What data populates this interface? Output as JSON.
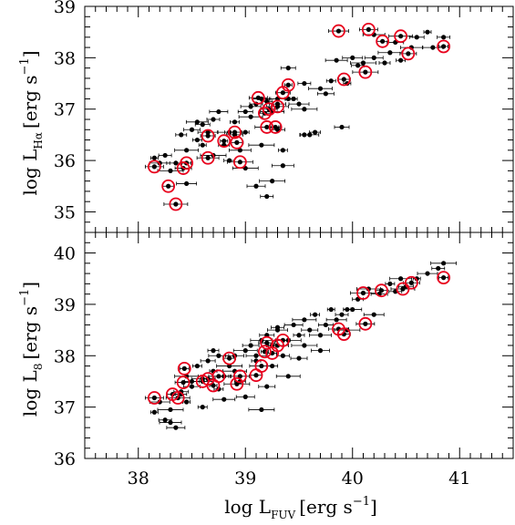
{
  "chart_data": [
    {
      "type": "scatter",
      "panel": "top",
      "ylabel": "log L",
      "ylabel_sub": "Hα",
      "ylabel_unit": "[erg s",
      "ylabel_exp": "−1",
      "ylabel_close": "]",
      "xlim": [
        37.5,
        41.5
      ],
      "ylim": [
        34.6,
        39.0
      ],
      "xticks": [
        38,
        39,
        40,
        41
      ],
      "yticks": [
        35,
        36,
        37,
        38,
        39
      ],
      "ytick_labels": [
        "35",
        "36",
        "37",
        "38",
        "39"
      ],
      "series": [
        {
          "points": [
            [
              38.15,
              36.05
            ],
            [
              38.2,
              35.95
            ],
            [
              38.25,
              36.1
            ],
            [
              38.3,
              35.8
            ],
            [
              38.35,
              35.95
            ],
            [
              38.4,
              36.5
            ],
            [
              38.45,
              36.2
            ],
            [
              38.5,
              36.6
            ],
            [
              38.55,
              36.4
            ],
            [
              38.55,
              36.75
            ],
            [
              38.6,
              36.7
            ],
            [
              38.6,
              36.3
            ],
            [
              38.65,
              36.55
            ],
            [
              38.7,
              36.8
            ],
            [
              38.7,
              36.1
            ],
            [
              38.75,
              36.95
            ],
            [
              38.8,
              36.3
            ],
            [
              38.85,
              36.55
            ],
            [
              38.9,
              36.5
            ],
            [
              38.9,
              36.75
            ],
            [
              38.95,
              36.2
            ],
            [
              39.0,
              36.95
            ],
            [
              39.0,
              36.55
            ],
            [
              39.05,
              37.05
            ],
            [
              39.1,
              37.1
            ],
            [
              39.15,
              36.3
            ],
            [
              39.15,
              37.2
            ],
            [
              39.2,
              37.15
            ],
            [
              39.25,
              36.95
            ],
            [
              39.3,
              37.2
            ],
            [
              39.35,
              36.2
            ],
            [
              39.35,
              35.9
            ],
            [
              39.4,
              37.8
            ],
            [
              39.45,
              37.2
            ],
            [
              39.5,
              37.1
            ],
            [
              39.55,
              37.5
            ],
            [
              39.55,
              37.0
            ],
            [
              39.6,
              36.5
            ],
            [
              39.65,
              36.55
            ],
            [
              39.7,
              37.4
            ],
            [
              39.75,
              37.3
            ],
            [
              39.8,
              37.55
            ],
            [
              39.85,
              37.95
            ],
            [
              39.9,
              36.65
            ],
            [
              39.95,
              37.5
            ],
            [
              40.0,
              38.0
            ],
            [
              40.05,
              37.85
            ],
            [
              40.1,
              37.9
            ],
            [
              40.2,
              38.0
            ],
            [
              40.3,
              37.9
            ],
            [
              40.35,
              38.1
            ],
            [
              40.4,
              38.3
            ],
            [
              40.45,
              37.95
            ],
            [
              40.55,
              38.2
            ],
            [
              40.6,
              38.4
            ],
            [
              40.7,
              38.5
            ],
            [
              40.75,
              38.2
            ],
            [
              40.85,
              38.4
            ],
            [
              39.25,
              35.6
            ],
            [
              39.1,
              35.5
            ],
            [
              38.85,
              36.0
            ],
            [
              39.05,
              36.85
            ],
            [
              39.3,
              37.1
            ],
            [
              39.55,
              36.5
            ],
            [
              40.2,
              38.45
            ],
            [
              39.3,
              36.6
            ],
            [
              39.4,
              37.2
            ],
            [
              38.45,
              35.55
            ],
            [
              39.2,
              35.3
            ],
            [
              39.0,
              35.85
            ]
          ]
        },
        {
          "name": "circled",
          "points": [
            [
              38.15,
              35.88
            ],
            [
              38.28,
              35.5
            ],
            [
              38.35,
              35.15
            ],
            [
              38.42,
              35.85
            ],
            [
              38.45,
              35.95
            ],
            [
              38.65,
              36.05
            ],
            [
              38.65,
              36.48
            ],
            [
              38.8,
              36.38
            ],
            [
              38.9,
              36.55
            ],
            [
              38.92,
              36.35
            ],
            [
              38.95,
              35.97
            ],
            [
              39.12,
              37.22
            ],
            [
              39.18,
              36.92
            ],
            [
              39.2,
              36.65
            ],
            [
              39.22,
              37.0
            ],
            [
              39.28,
              36.65
            ],
            [
              39.3,
              37.05
            ],
            [
              39.35,
              37.32
            ],
            [
              39.4,
              37.47
            ],
            [
              39.87,
              38.52
            ],
            [
              39.92,
              37.58
            ],
            [
              40.12,
              37.72
            ],
            [
              40.15,
              38.55
            ],
            [
              40.28,
              38.32
            ],
            [
              40.45,
              38.42
            ],
            [
              40.52,
              38.08
            ],
            [
              40.85,
              38.22
            ]
          ]
        }
      ]
    },
    {
      "type": "scatter",
      "panel": "bottom",
      "xlabel": "log L",
      "xlabel_sub": "FUV",
      "xlabel_unit": "[erg s",
      "xlabel_exp": "−1",
      "xlabel_close": "]",
      "ylabel": "log L",
      "ylabel_sub": "8",
      "ylabel_unit": "[erg s",
      "ylabel_exp": "−1",
      "ylabel_close": "]",
      "xlim": [
        37.5,
        41.5
      ],
      "ylim": [
        36.0,
        40.4
      ],
      "xticks": [
        38,
        39,
        40,
        41
      ],
      "xtick_labels": [
        "38",
        "39",
        "40",
        "41"
      ],
      "yticks": [
        36,
        37,
        38,
        39,
        40
      ],
      "ytick_labels": [
        "36",
        "37",
        "38",
        "39",
        "40"
      ],
      "series": [
        {
          "points": [
            [
              38.15,
              36.9
            ],
            [
              38.2,
              37.1
            ],
            [
              38.25,
              36.75
            ],
            [
              38.3,
              36.95
            ],
            [
              38.35,
              36.6
            ],
            [
              38.4,
              37.25
            ],
            [
              38.45,
              37.6
            ],
            [
              38.5,
              37.4
            ],
            [
              38.55,
              37.8
            ],
            [
              38.6,
              37.55
            ],
            [
              38.65,
              37.9
            ],
            [
              38.7,
              37.7
            ],
            [
              38.75,
              38.0
            ],
            [
              38.8,
              37.6
            ],
            [
              38.85,
              37.8
            ],
            [
              38.9,
              38.0
            ],
            [
              38.95,
              37.5
            ],
            [
              39.0,
              38.1
            ],
            [
              39.05,
              38.2
            ],
            [
              39.1,
              37.9
            ],
            [
              39.15,
              38.3
            ],
            [
              39.2,
              38.4
            ],
            [
              39.25,
              38.2
            ],
            [
              39.3,
              38.5
            ],
            [
              39.35,
              38.0
            ],
            [
              39.4,
              38.3
            ],
            [
              39.45,
              38.6
            ],
            [
              39.5,
              38.4
            ],
            [
              39.55,
              38.7
            ],
            [
              39.6,
              38.5
            ],
            [
              39.65,
              38.8
            ],
            [
              39.7,
              38.4
            ],
            [
              39.75,
              38.6
            ],
            [
              39.8,
              38.9
            ],
            [
              39.85,
              38.7
            ],
            [
              39.9,
              38.8
            ],
            [
              39.95,
              38.5
            ],
            [
              40.0,
              38.9
            ],
            [
              40.05,
              39.1
            ],
            [
              40.15,
              39.3
            ],
            [
              40.25,
              39.2
            ],
            [
              40.35,
              39.4
            ],
            [
              40.45,
              39.5
            ],
            [
              40.5,
              39.35
            ],
            [
              40.6,
              39.5
            ],
            [
              40.7,
              39.6
            ],
            [
              40.8,
              39.7
            ],
            [
              40.85,
              39.8
            ],
            [
              39.0,
              37.2
            ],
            [
              39.25,
              37.8
            ],
            [
              39.4,
              37.6
            ],
            [
              39.5,
              37.95
            ],
            [
              38.6,
              37.0
            ],
            [
              38.8,
              37.15
            ],
            [
              38.5,
              37.5
            ],
            [
              38.45,
              37.1
            ],
            [
              39.1,
              38.0
            ],
            [
              39.3,
              38.55
            ],
            [
              39.55,
              38.2
            ],
            [
              39.7,
              38.1
            ],
            [
              38.7,
              38.1
            ],
            [
              38.9,
              37.7
            ],
            [
              39.2,
              37.4
            ],
            [
              38.75,
              37.35
            ],
            [
              38.3,
              36.7
            ],
            [
              38.4,
              37.3
            ],
            [
              39.95,
              38.9
            ],
            [
              40.2,
              38.8
            ],
            [
              40.4,
              39.25
            ],
            [
              39.15,
              36.95
            ]
          ]
        },
        {
          "name": "circled",
          "points": [
            [
              38.15,
              37.18
            ],
            [
              38.32,
              37.25
            ],
            [
              38.37,
              37.18
            ],
            [
              38.42,
              37.48
            ],
            [
              38.43,
              37.75
            ],
            [
              38.6,
              37.5
            ],
            [
              38.65,
              37.55
            ],
            [
              38.7,
              37.42
            ],
            [
              38.75,
              37.6
            ],
            [
              38.85,
              37.95
            ],
            [
              38.92,
              37.45
            ],
            [
              38.95,
              37.6
            ],
            [
              39.1,
              37.62
            ],
            [
              39.15,
              37.8
            ],
            [
              39.2,
              38.25
            ],
            [
              39.25,
              38.05
            ],
            [
              39.3,
              38.2
            ],
            [
              39.35,
              38.3
            ],
            [
              39.18,
              38.08
            ],
            [
              39.87,
              38.52
            ],
            [
              39.92,
              38.42
            ],
            [
              40.1,
              39.22
            ],
            [
              40.12,
              38.62
            ],
            [
              40.27,
              39.27
            ],
            [
              40.47,
              39.3
            ],
            [
              40.55,
              39.42
            ],
            [
              40.85,
              39.52
            ]
          ]
        }
      ]
    }
  ],
  "colors": {
    "axis": "#000000",
    "point": "#000000",
    "circle": "#e8001c"
  }
}
